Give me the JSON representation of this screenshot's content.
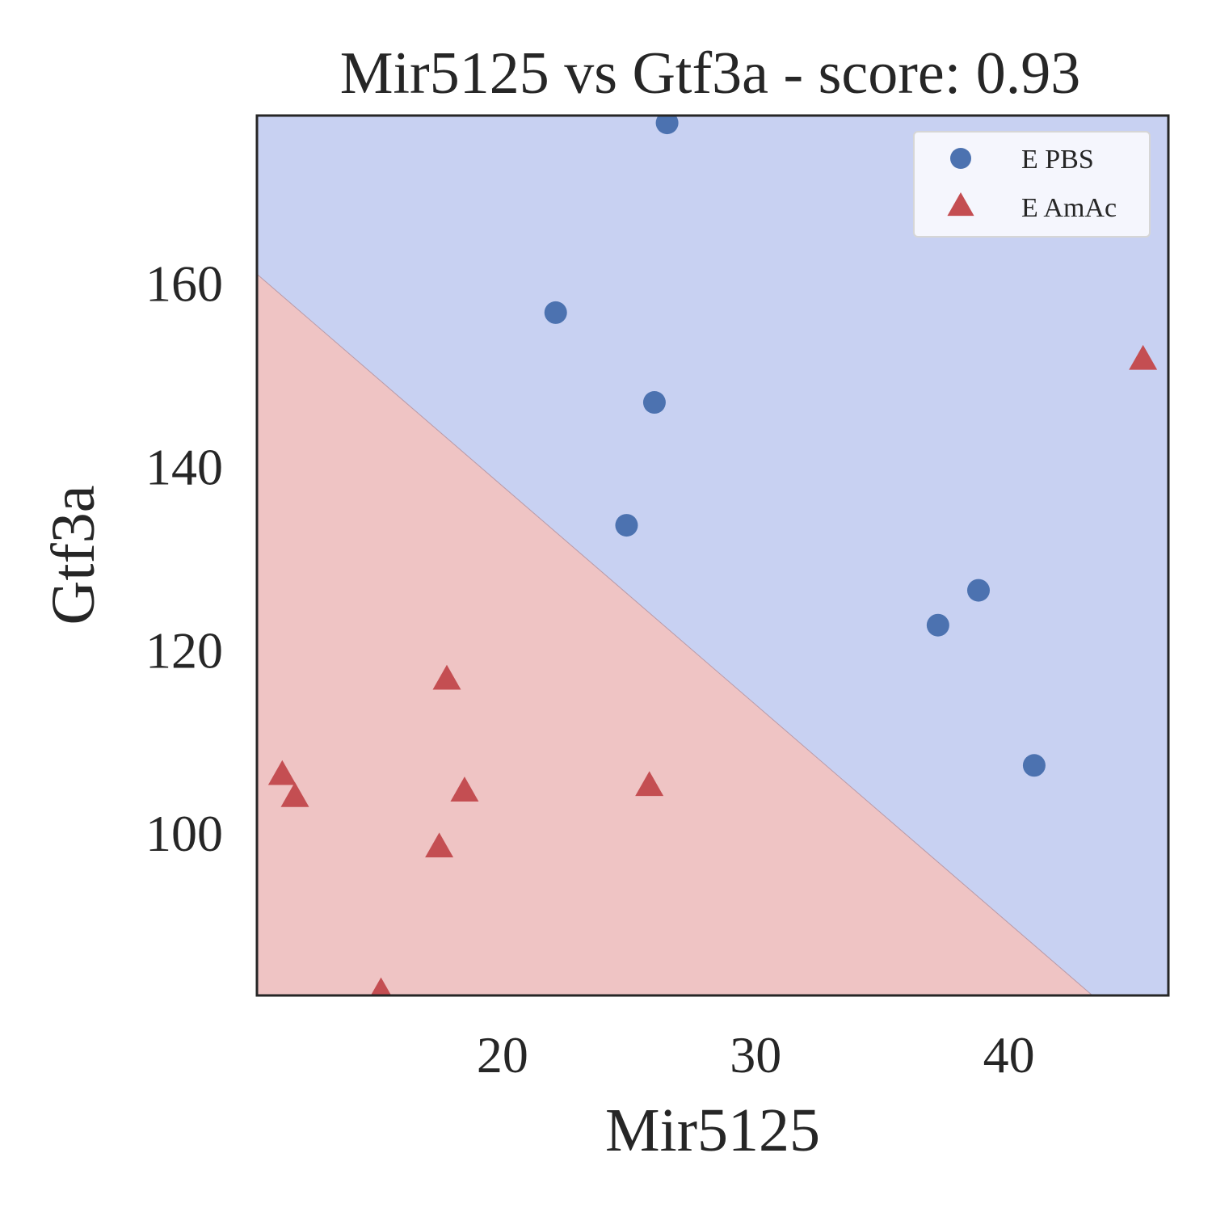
{
  "chart_data": {
    "type": "scatter",
    "title": "Mir5125 vs Gtf3a - score: 0.93",
    "xlabel": "Mir5125",
    "ylabel": "Gtf3a",
    "xlim": [
      10.3,
      46.3
    ],
    "ylim": [
      82.3,
      178.3
    ],
    "xticks": [
      20,
      30,
      40
    ],
    "yticks": [
      100,
      120,
      140,
      160
    ],
    "grid": false,
    "legend_position": "top-right",
    "colors": {
      "E PBS": "#4c72b0",
      "E AmAc": "#c44e52",
      "region_pbs": "#c8d1f2",
      "region_amac": "#efc4c4"
    },
    "decision_boundary": [
      [
        10.3,
        161.0
      ],
      [
        43.3,
        82.3
      ]
    ],
    "series": [
      {
        "name": "E PBS",
        "marker": "circle",
        "points": [
          [
            26.5,
            177.5
          ],
          [
            22.1,
            156.8
          ],
          [
            26.0,
            147.0
          ],
          [
            24.9,
            133.6
          ],
          [
            37.2,
            122.7
          ],
          [
            38.8,
            126.5
          ],
          [
            41.0,
            107.4
          ]
        ]
      },
      {
        "name": "E AmAc",
        "marker": "triangle",
        "points": [
          [
            11.3,
            106.3
          ],
          [
            11.8,
            103.9
          ],
          [
            17.8,
            116.7
          ],
          [
            18.5,
            104.5
          ],
          [
            17.5,
            98.4
          ],
          [
            25.8,
            105.1
          ],
          [
            15.2,
            82.6
          ],
          [
            45.3,
            151.6
          ]
        ]
      }
    ]
  }
}
